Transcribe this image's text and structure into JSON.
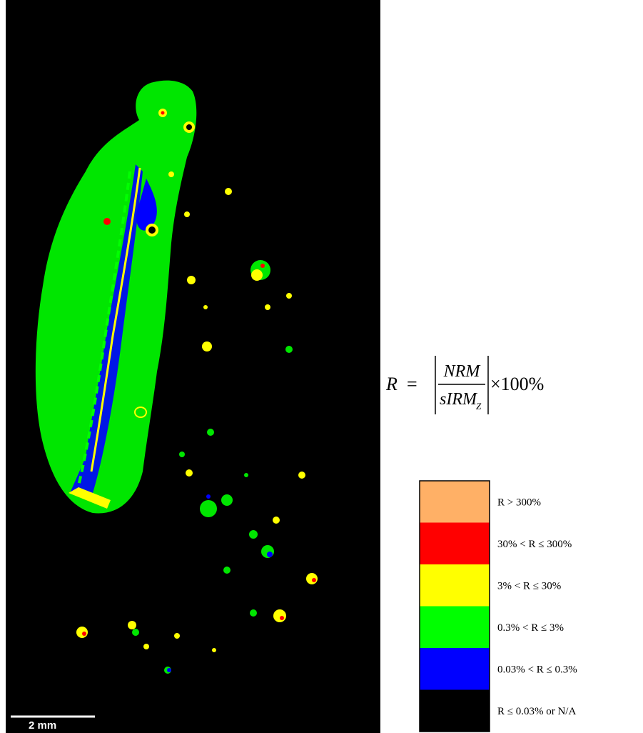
{
  "figure": {
    "scale_bar": {
      "label": "2 mm"
    },
    "formula": {
      "lhs": "R",
      "equals": "=",
      "numerator": "NRM",
      "denominator": "sIRM",
      "subscript": "Z",
      "factor": "×100%"
    },
    "legend": {
      "items": [
        {
          "label": "R > 300%",
          "color": "#ffb066"
        },
        {
          "label": "30% < R ≤ 300%",
          "color": "#ff0000"
        },
        {
          "label": "3% < R ≤ 30%",
          "color": "#ffff00"
        },
        {
          "label": "0.3% < R ≤ 3%",
          "color": "#00ff00"
        },
        {
          "label": "0.03% < R ≤ 0.3%",
          "color": "#0000ff"
        },
        {
          "label": "R ≤ 0.03% or N/A",
          "color": "#000000"
        }
      ]
    }
  }
}
